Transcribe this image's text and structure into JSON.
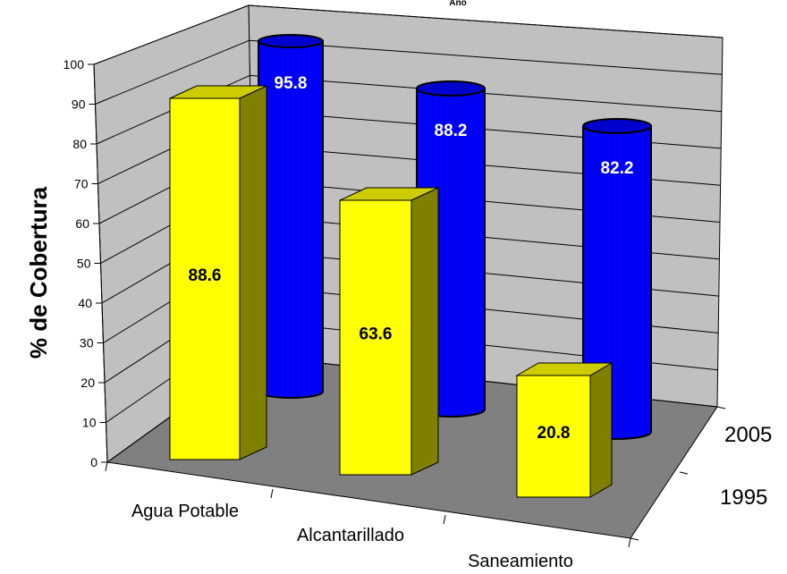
{
  "chart_data": {
    "type": "bar",
    "title": "Año",
    "ylabel": "% de Cobertura",
    "categories": [
      "Agua Potable",
      "Alcantarillado",
      "Saneamiento"
    ],
    "series": [
      {
        "name": "1995",
        "values": [
          88.6,
          63.6,
          20.8
        ],
        "color": "#ffff00",
        "shape": "box"
      },
      {
        "name": "2005",
        "values": [
          95.8,
          88.2,
          82.2
        ],
        "color": "#0000ff",
        "shape": "cylinder"
      }
    ],
    "yticks": [
      0,
      10,
      20,
      30,
      40,
      50,
      60,
      70,
      80,
      90,
      100
    ],
    "ylim": [
      0,
      100
    ],
    "depth_labels": [
      "1995",
      "2005"
    ],
    "grid": true
  }
}
